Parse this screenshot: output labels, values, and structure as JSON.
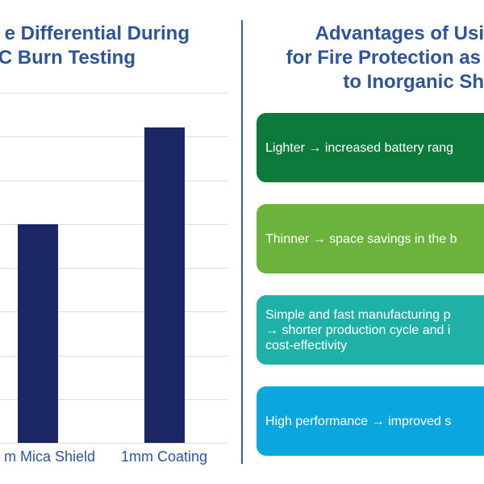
{
  "chart_data": {
    "type": "bar",
    "title_lines": [
      "e Differential During",
      "C Burn Testing"
    ],
    "categories": [
      "m Mica Shield",
      "1mm Coating"
    ],
    "values": [
      5.0,
      7.2
    ],
    "ylim": [
      0,
      8
    ],
    "grid": true,
    "bar_color": "#1b2664"
  },
  "advantages": {
    "title_lines": [
      "Advantages of Usi",
      "for Fire Protection as",
      "to Inorganic Sh"
    ],
    "items": [
      {
        "lines": [
          "Lighter → increased battery rang"
        ],
        "color": "#0d7a3b"
      },
      {
        "lines": [
          "Thinner → space savings in the b"
        ],
        "color": "#6cb33e"
      },
      {
        "lines": [
          "Simple and fast manufacturing p",
          "→ shorter production cycle and i",
          "cost-effectivity"
        ],
        "color": "#1fb1a8"
      },
      {
        "lines": [
          "High performance → improved s"
        ],
        "color": "#0aa7df"
      }
    ]
  }
}
